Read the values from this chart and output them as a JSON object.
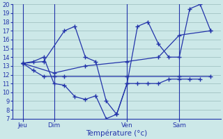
{
  "xlabel": "Température (°c)",
  "background_color": "#cce8e8",
  "line_color": "#2233aa",
  "grid_color": "#99bbbb",
  "ylim": [
    7,
    20
  ],
  "yticks": [
    7,
    8,
    9,
    10,
    11,
    12,
    13,
    14,
    15,
    16,
    17,
    18,
    19,
    20
  ],
  "xlim": [
    0,
    20
  ],
  "xtick_positions": [
    1,
    4,
    11,
    16
  ],
  "xtick_labels": [
    "Jeu",
    "Dim",
    "Ven",
    "Sam"
  ],
  "vlines": [
    1,
    4,
    11,
    16
  ],
  "series": [
    {
      "x": [
        1,
        2,
        3,
        4,
        5,
        6,
        7,
        8,
        9,
        10,
        11,
        12,
        13,
        14,
        15,
        16,
        17,
        18
      ],
      "y": [
        13.3,
        13.5,
        14.0,
        11.0,
        10.8,
        9.5,
        9.2,
        9.6,
        7.0,
        7.5,
        11.0,
        11.0,
        11.0,
        11.0,
        11.5,
        11.5,
        11.5,
        11.5
      ]
    },
    {
      "x": [
        1,
        3,
        5,
        6,
        7,
        8,
        9,
        10,
        11,
        12,
        13,
        14,
        15,
        16,
        17,
        18,
        19
      ],
      "y": [
        13.3,
        13.5,
        17.0,
        17.5,
        14.0,
        13.5,
        9.0,
        7.5,
        11.0,
        17.5,
        18.0,
        15.5,
        14.0,
        14.0,
        19.5,
        20.0,
        17.0
      ]
    },
    {
      "x": [
        1,
        2,
        3,
        4,
        5,
        11,
        16,
        19
      ],
      "y": [
        13.3,
        12.5,
        11.8,
        11.8,
        11.8,
        11.8,
        11.8,
        11.8
      ]
    },
    {
      "x": [
        1,
        4,
        7,
        11,
        14,
        16,
        19
      ],
      "y": [
        13.3,
        12.2,
        13.0,
        13.5,
        14.0,
        16.5,
        17.0
      ]
    }
  ]
}
